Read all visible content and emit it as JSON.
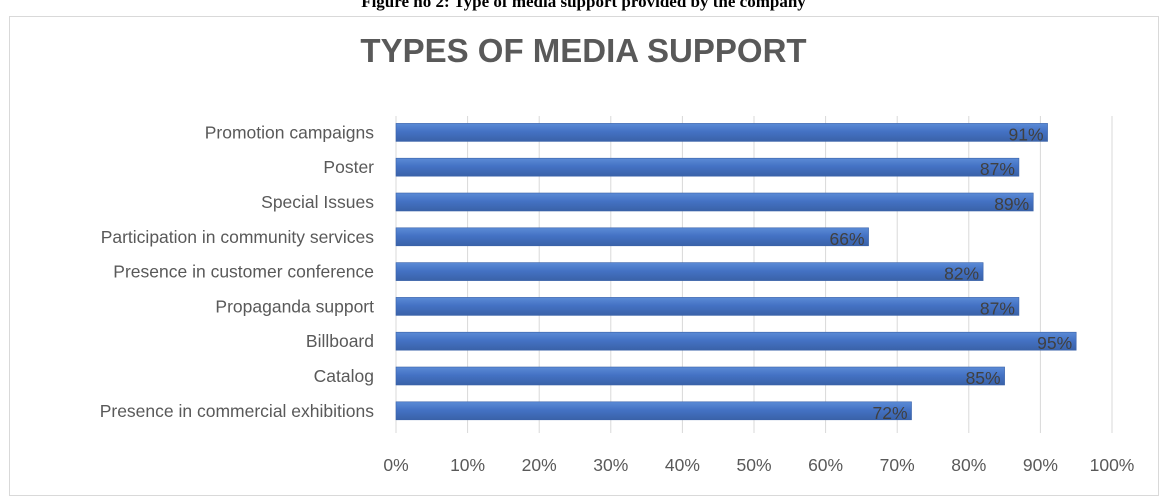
{
  "caption": "Figure no 2: Type of media support provided by the company",
  "chart_data": {
    "type": "bar",
    "orientation": "horizontal",
    "title": "TYPES OF MEDIA SUPPORT",
    "categories": [
      "Promotion campaigns",
      "Poster",
      "Special Issues",
      "Participation in community services",
      "Presence in customer conference",
      "Propaganda support",
      "Billboard",
      "Catalog",
      "Presence in commercial exhibitions"
    ],
    "values": [
      91,
      87,
      89,
      66,
      82,
      87,
      95,
      85,
      72
    ],
    "value_labels": [
      "91%",
      "87%",
      "89%",
      "66%",
      "82%",
      "87%",
      "95%",
      "85%",
      "72%"
    ],
    "x_ticks": [
      "0%",
      "10%",
      "20%",
      "30%",
      "40%",
      "50%",
      "60%",
      "70%",
      "80%",
      "90%",
      "100%"
    ],
    "xlim": [
      0,
      100
    ],
    "grid": "vertical",
    "legend": "none",
    "bar_color": "#4472c4"
  }
}
